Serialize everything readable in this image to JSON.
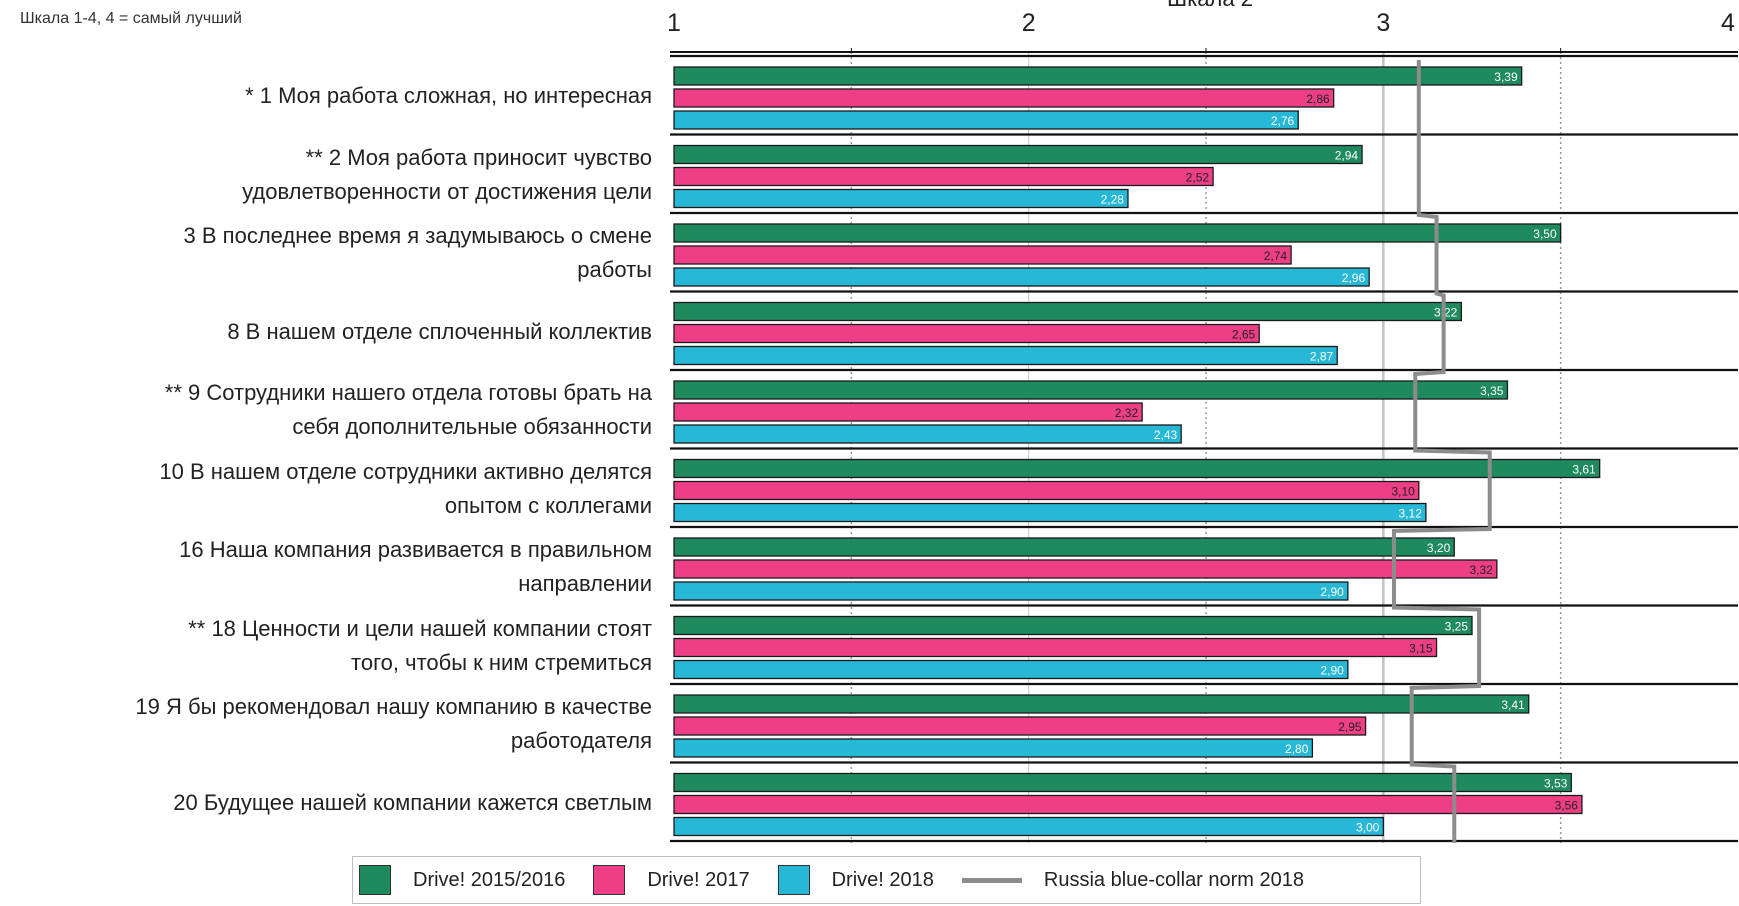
{
  "scale_note": "Шкала 1-4, 4 = самый лучший",
  "top_title_partial": "Шкала 2",
  "colors": {
    "drive_2015_2016": "#1e8a5e",
    "drive_2017": "#ee3f86",
    "drive_2018": "#27b8d8",
    "norm": "#8c8c8c",
    "axis": "#111111",
    "grid_dotted": "#9a9a9a"
  },
  "legend": [
    {
      "label": "Drive! 2015/2016",
      "color": "#1e8a5e",
      "kind": "box"
    },
    {
      "label": "Drive! 2017",
      "color": "#ee3f86",
      "kind": "box"
    },
    {
      "label": "Drive! 2018",
      "color": "#27b8d8",
      "kind": "box"
    },
    {
      "label": "Russia blue-collar norm 2018",
      "color": "#8c8c8c",
      "kind": "line"
    }
  ],
  "chart_data": {
    "type": "bar",
    "orientation": "horizontal",
    "x_ticks": [
      "1",
      "2",
      "3",
      "4"
    ],
    "xlim": [
      1,
      4
    ],
    "categories": [
      [
        "*   1 Моя работа сложная, но интересная"
      ],
      [
        "**   2 Моя работа приносит чувство",
        "удовлетворенности от достижения цели"
      ],
      [
        "3 В последнее время я задумываюсь о смене",
        "работы"
      ],
      [
        "8 В нашем отделе сплоченный коллектив"
      ],
      [
        "**   9 Сотрудники нашего отдела готовы брать на",
        "себя дополнительные обязанности"
      ],
      [
        "10 В нашем отделе сотрудники активно делятся",
        "опытом с коллегами"
      ],
      [
        "16 Наша компания развивается в правильном",
        "направлении"
      ],
      [
        "**   18 Ценности и цели нашей компании стоят",
        "того, чтобы к ним стремиться"
      ],
      [
        "19 Я бы рекомендовал нашу компанию в качестве",
        "работодателя"
      ],
      [
        "20 Будущее нашей компании кажется светлым"
      ]
    ],
    "series": [
      {
        "name": "Drive! 2015/2016",
        "values": [
          3.39,
          2.94,
          3.5,
          3.22,
          3.35,
          3.61,
          3.2,
          3.25,
          3.41,
          3.53
        ],
        "labels": [
          "3,39",
          "2,94",
          "3,50",
          "3,22",
          "3,35",
          "3,61",
          "3,20",
          "3,25",
          "3,41",
          "3,53"
        ]
      },
      {
        "name": "Drive! 2017",
        "values": [
          2.86,
          2.52,
          2.74,
          2.65,
          2.32,
          3.1,
          3.32,
          3.15,
          2.95,
          3.56
        ],
        "labels": [
          "2,86",
          "2,52",
          "2,74",
          "2,65",
          "2,32",
          "3,10",
          "3,32",
          "3,15",
          "2,95",
          "3,56"
        ]
      },
      {
        "name": "Drive! 2018",
        "values": [
          2.76,
          2.28,
          2.96,
          2.87,
          2.43,
          3.12,
          2.9,
          2.9,
          2.8,
          3.0
        ],
        "labels": [
          "2,76",
          "2,28",
          "2,96",
          "2,87",
          "2,43",
          "3,12",
          "2,90",
          "2,90",
          "2,80",
          "3,00"
        ]
      }
    ],
    "norm": {
      "name": "Russia blue-collar norm 2018",
      "values": [
        3.1,
        3.1,
        3.15,
        3.17,
        3.09,
        3.3,
        3.03,
        3.27,
        3.08,
        3.2
      ]
    },
    "grid": "dotted at 1.5, 2.5, 3.5; solid at 3",
    "legend_position": "bottom"
  }
}
